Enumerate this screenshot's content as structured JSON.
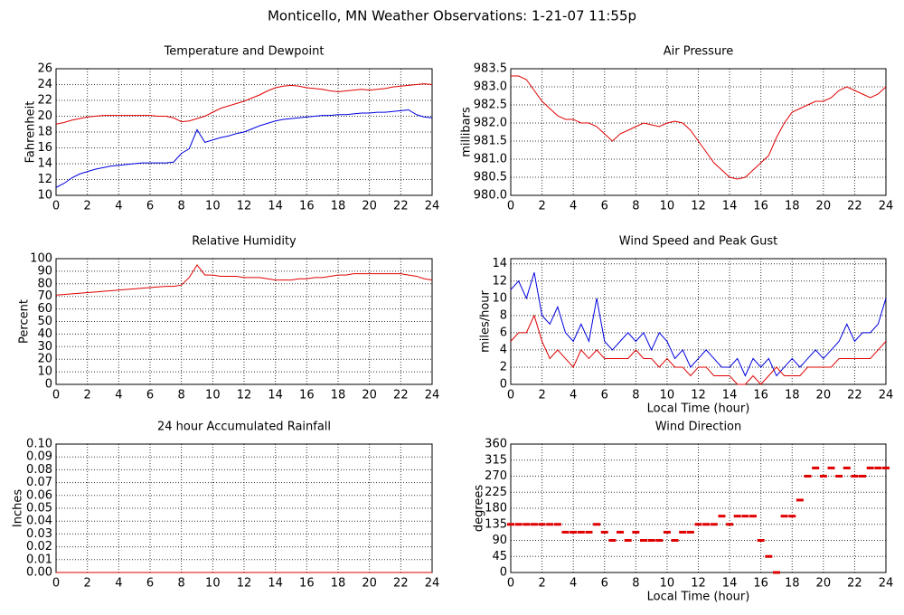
{
  "title": "Monticello, MN Weather Observations: 1-21-07 11:55p",
  "chart_data": [
    {
      "type": "line",
      "title": "Temperature and Dewpoint",
      "ylabel": "Fahrenheit",
      "xlim": [
        0,
        24
      ],
      "xticks": [
        0,
        2,
        4,
        6,
        8,
        10,
        12,
        14,
        16,
        18,
        20,
        22,
        24
      ],
      "ylim": [
        10,
        26
      ],
      "yticks": [
        10,
        12,
        14,
        16,
        18,
        20,
        22,
        24,
        26
      ],
      "grid": true,
      "x": [
        0,
        0.5,
        1,
        1.5,
        2,
        2.5,
        3,
        3.5,
        4,
        4.5,
        5,
        5.5,
        6,
        6.5,
        7,
        7.5,
        8,
        8.5,
        9,
        9.5,
        10,
        10.5,
        11,
        11.5,
        12,
        12.5,
        13,
        13.5,
        14,
        14.5,
        15,
        15.5,
        16,
        16.5,
        17,
        17.5,
        18,
        18.5,
        19,
        19.5,
        20,
        20.5,
        21,
        21.5,
        22,
        22.5,
        23,
        23.5,
        24
      ],
      "series": [
        {
          "color": "#e00000",
          "values": [
            19,
            19.2,
            19.5,
            19.7,
            19.9,
            20,
            20.1,
            20.1,
            20.1,
            20.1,
            20.1,
            20.1,
            20.1,
            20,
            20,
            19.8,
            19.3,
            19.4,
            19.7,
            20,
            20.5,
            21,
            21.3,
            21.6,
            21.9,
            22.3,
            22.7,
            23.2,
            23.6,
            23.8,
            23.9,
            23.8,
            23.6,
            23.5,
            23.4,
            23.2,
            23.1,
            23.2,
            23.3,
            23.4,
            23.3,
            23.4,
            23.5,
            23.7,
            23.8,
            23.9,
            24,
            24.1,
            24
          ]
        },
        {
          "color": "#0000e0",
          "values": [
            11,
            11.5,
            12.2,
            12.7,
            13,
            13.3,
            13.5,
            13.7,
            13.8,
            13.9,
            14,
            14.1,
            14.1,
            14.1,
            14.1,
            14.2,
            15.3,
            15.9,
            18.3,
            16.7,
            17,
            17.3,
            17.5,
            17.8,
            18,
            18.4,
            18.8,
            19.1,
            19.4,
            19.6,
            19.7,
            19.8,
            19.9,
            20,
            20.1,
            20.1,
            20.2,
            20.2,
            20.3,
            20.4,
            20.4,
            20.5,
            20.5,
            20.6,
            20.7,
            20.8,
            20.2,
            19.9,
            19.8
          ]
        }
      ]
    },
    {
      "type": "line",
      "title": "Air Pressure",
      "ylabel": "millibars",
      "xlim": [
        0,
        24
      ],
      "xticks": [
        0,
        2,
        4,
        6,
        8,
        10,
        12,
        14,
        16,
        18,
        20,
        22,
        24
      ],
      "ylim": [
        980,
        983.5
      ],
      "yticks": [
        {
          "value": 980,
          "label": "980.0"
        },
        980.5,
        {
          "value": 981,
          "label": "981.0"
        },
        981.5,
        {
          "value": 982,
          "label": "982.0"
        },
        982.5,
        {
          "value": 983,
          "label": "983.0"
        },
        983.5
      ],
      "grid": true,
      "x": [
        0,
        0.5,
        1,
        1.5,
        2,
        2.5,
        3,
        3.5,
        4,
        4.5,
        5,
        5.5,
        6,
        6.5,
        7,
        7.5,
        8,
        8.5,
        9,
        9.5,
        10,
        10.5,
        11,
        11.5,
        12,
        12.5,
        13,
        13.5,
        14,
        14.5,
        15,
        15.5,
        16,
        16.5,
        17,
        17.5,
        18,
        18.5,
        19,
        19.5,
        20,
        20.5,
        21,
        21.5,
        22,
        22.5,
        23,
        23.5,
        24
      ],
      "series": [
        {
          "color": "#e00000",
          "values": [
            983.3,
            983.3,
            983.2,
            982.9,
            982.6,
            982.4,
            982.2,
            982.1,
            982.1,
            982,
            982,
            981.9,
            981.7,
            981.5,
            981.7,
            981.8,
            981.9,
            982,
            981.95,
            981.9,
            982,
            982.05,
            982,
            981.8,
            981.5,
            981.2,
            980.9,
            980.7,
            980.5,
            980.45,
            980.5,
            980.7,
            980.9,
            981.1,
            981.6,
            982,
            982.3,
            982.4,
            982.5,
            982.6,
            982.6,
            982.7,
            982.9,
            983,
            982.9,
            982.8,
            982.7,
            982.8,
            983
          ]
        }
      ]
    },
    {
      "type": "line",
      "title": "Relative Humidity",
      "ylabel": "Percent",
      "xlim": [
        0,
        24
      ],
      "xticks": [
        0,
        2,
        4,
        6,
        8,
        10,
        12,
        14,
        16,
        18,
        20,
        22,
        24
      ],
      "ylim": [
        0,
        100
      ],
      "yticks": [
        0,
        10,
        20,
        30,
        40,
        50,
        60,
        70,
        80,
        90,
        100
      ],
      "grid": true,
      "x": [
        0,
        0.5,
        1,
        1.5,
        2,
        2.5,
        3,
        3.5,
        4,
        4.5,
        5,
        5.5,
        6,
        6.5,
        7,
        7.5,
        8,
        8.5,
        9,
        9.5,
        10,
        10.5,
        11,
        11.5,
        12,
        12.5,
        13,
        13.5,
        14,
        14.5,
        15,
        15.5,
        16,
        16.5,
        17,
        17.5,
        18,
        18.5,
        19,
        19.5,
        20,
        20.5,
        21,
        21.5,
        22,
        22.5,
        23,
        23.5,
        24
      ],
      "series": [
        {
          "color": "#e00000",
          "values": [
            71,
            71.5,
            72,
            72.5,
            73,
            73.5,
            74,
            74.5,
            75,
            75.5,
            76,
            76.5,
            77,
            77.5,
            78,
            78,
            79,
            85,
            95,
            87,
            87,
            86,
            86,
            86,
            85,
            85,
            85,
            84,
            83,
            83,
            83,
            84,
            84,
            85,
            85,
            86,
            87,
            87,
            88,
            88,
            88,
            88,
            88,
            88,
            88,
            87,
            86,
            84,
            83
          ]
        }
      ]
    },
    {
      "type": "line",
      "title": "Wind Speed and Peak Gust",
      "ylabel": "miles/hour",
      "xlabel": "Local Time (hour)",
      "xlim": [
        0,
        24
      ],
      "xticks": [
        0,
        2,
        4,
        6,
        8,
        10,
        12,
        14,
        16,
        18,
        20,
        22,
        24
      ],
      "ylim": [
        0,
        14.6
      ],
      "yticks": [
        0,
        2,
        4,
        6,
        8,
        10,
        12,
        14
      ],
      "grid": true,
      "x": [
        0,
        0.5,
        1,
        1.5,
        2,
        2.5,
        3,
        3.5,
        4,
        4.5,
        5,
        5.5,
        6,
        6.5,
        7,
        7.5,
        8,
        8.5,
        9,
        9.5,
        10,
        10.5,
        11,
        11.5,
        12,
        12.5,
        13,
        13.5,
        14,
        14.5,
        15,
        15.5,
        16,
        16.5,
        17,
        17.5,
        18,
        18.5,
        19,
        19.5,
        20,
        20.5,
        21,
        21.5,
        22,
        22.5,
        23,
        23.5,
        24
      ],
      "series": [
        {
          "color": "#0000e0",
          "values": [
            11,
            12,
            10,
            13,
            8,
            7,
            9,
            6,
            5,
            7,
            5,
            10,
            5,
            4,
            5,
            6,
            5,
            6,
            4,
            6,
            5,
            3,
            4,
            2,
            3,
            4,
            3,
            2,
            2,
            3,
            1,
            3,
            2,
            3,
            1,
            2,
            3,
            2,
            3,
            4,
            3,
            4,
            5,
            7,
            5,
            6,
            6,
            7,
            10
          ]
        },
        {
          "color": "#e00000",
          "values": [
            5,
            6,
            6,
            8,
            5,
            3,
            4,
            3,
            2,
            4,
            3,
            4,
            3,
            3,
            3,
            3,
            4,
            3,
            3,
            2,
            3,
            2,
            2,
            1,
            2,
            2,
            1,
            1,
            1,
            0,
            0,
            1,
            0,
            1,
            2,
            1,
            1,
            1,
            2,
            2,
            2,
            2,
            3,
            3,
            3,
            3,
            3,
            4,
            5
          ]
        }
      ]
    },
    {
      "type": "line",
      "title": "24 hour Accumulated Rainfall",
      "ylabel": "Inches",
      "xlim": [
        0,
        24
      ],
      "xticks": [
        0,
        2,
        4,
        6,
        8,
        10,
        12,
        14,
        16,
        18,
        20,
        22,
        24
      ],
      "ylim": [
        0,
        0.1
      ],
      "yticks": [
        {
          "value": 0,
          "label": "0.00"
        },
        {
          "value": 0.01,
          "label": "0.01"
        },
        {
          "value": 0.02,
          "label": "0.02"
        },
        {
          "value": 0.03,
          "label": "0.03"
        },
        {
          "value": 0.04,
          "label": "0.04"
        },
        {
          "value": 0.05,
          "label": "0.05"
        },
        {
          "value": 0.06,
          "label": "0.06"
        },
        {
          "value": 0.07,
          "label": "0.07"
        },
        {
          "value": 0.08,
          "label": "0.08"
        },
        {
          "value": 0.09,
          "label": "0.09"
        },
        {
          "value": 0.1,
          "label": "0.10"
        }
      ],
      "grid": true,
      "x": [
        0,
        24
      ],
      "series": [
        {
          "color": "#e00000",
          "values": [
            0,
            0
          ]
        }
      ]
    },
    {
      "type": "scatter",
      "title": "Wind Direction",
      "ylabel": "degrees",
      "xlabel": "Local Time (hour)",
      "xlim": [
        0,
        24
      ],
      "xticks": [
        0,
        2,
        4,
        6,
        8,
        10,
        12,
        14,
        16,
        18,
        20,
        22,
        24
      ],
      "ylim": [
        0,
        360
      ],
      "yticks": [
        0,
        45,
        90,
        135,
        180,
        225,
        270,
        315,
        360
      ],
      "grid": true,
      "x": [
        0,
        0.5,
        1,
        1.5,
        2,
        2.5,
        3,
        3.5,
        4,
        4.5,
        5,
        5.5,
        6,
        6.5,
        7,
        7.5,
        8,
        8.5,
        9,
        9.5,
        10,
        10.5,
        11,
        11.5,
        12,
        12.5,
        13,
        13.5,
        14,
        14.5,
        15,
        15.5,
        16,
        16.5,
        17,
        17.5,
        18,
        18.5,
        19,
        19.5,
        20,
        20.5,
        21,
        21.5,
        22,
        22.5,
        23,
        23.5,
        24
      ],
      "series": [
        {
          "color": "#e00000",
          "values": [
            135,
            135,
            135,
            135,
            135,
            135,
            135,
            113,
            113,
            113,
            113,
            135,
            113,
            90,
            113,
            90,
            113,
            90,
            90,
            90,
            113,
            90,
            113,
            113,
            135,
            135,
            135,
            158,
            135,
            158,
            158,
            158,
            90,
            45,
            0,
            158,
            158,
            203,
            270,
            293,
            270,
            293,
            270,
            293,
            270,
            270,
            293,
            293,
            293
          ]
        }
      ]
    }
  ]
}
